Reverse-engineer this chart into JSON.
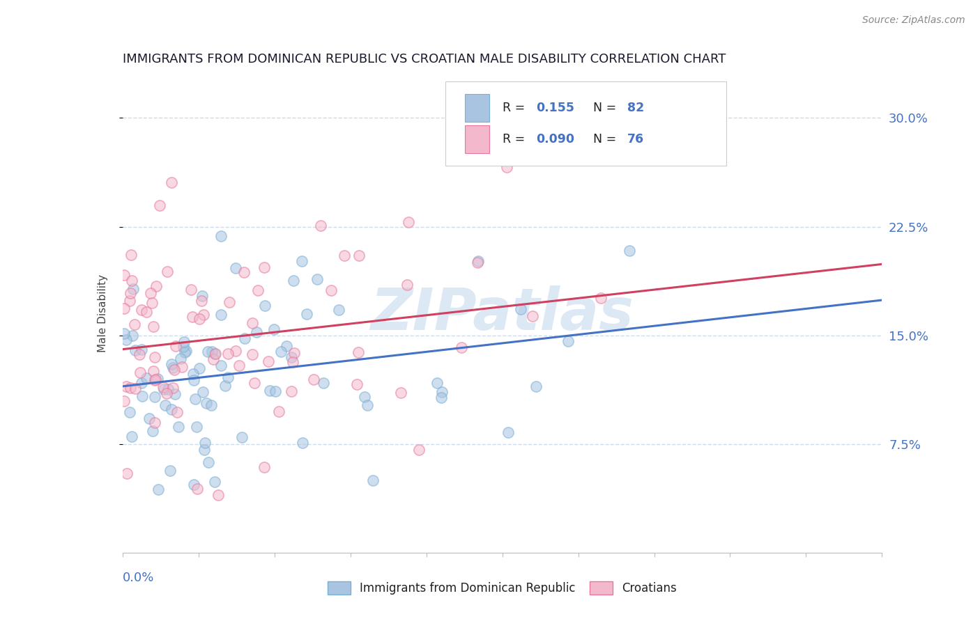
{
  "title": "IMMIGRANTS FROM DOMINICAN REPUBLIC VS CROATIAN MALE DISABILITY CORRELATION CHART",
  "source": "Source: ZipAtlas.com",
  "ylabel_labels": [
    "7.5%",
    "15.0%",
    "22.5%",
    "30.0%"
  ],
  "ylabel_values": [
    0.075,
    0.15,
    0.225,
    0.3
  ],
  "xmin": 0.0,
  "xmax": 0.4,
  "ymin": 0.0,
  "ymax": 0.33,
  "series1_label": "Immigrants from Dominican Republic",
  "series2_label": "Croatians",
  "color1_fill": "#a8c4e0",
  "color1_edge": "#7aafd4",
  "color2_fill": "#f4b8cc",
  "color2_edge": "#e87899",
  "trendline1_color": "#4472c4",
  "trendline2_color": "#d04060",
  "background_color": "#ffffff",
  "grid_color": "#c8d8e8",
  "title_color": "#1a1a2e",
  "axis_label_color": "#4472c4",
  "watermark_color": "#dce8f4",
  "ylabel_axis_color": "#4472c4"
}
